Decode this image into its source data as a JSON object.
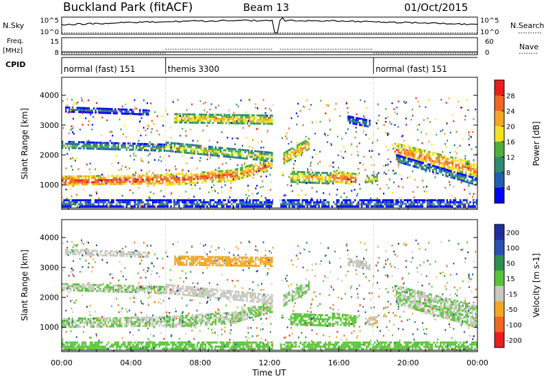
{
  "header": {
    "station": "Buckland Park (fitACF)",
    "beam": "Beam 13",
    "date": "01/Oct/2015"
  },
  "summary_panels": {
    "nsky": {
      "label": "N.Sky",
      "right_label": "N.Search",
      "left_ticks": [
        "10^5",
        "10^0"
      ],
      "right_ticks": [
        "10^5",
        "10^0"
      ]
    },
    "freq": {
      "label": "Freq.",
      "label_units": "[MHz]",
      "right_label": "Nave",
      "left_ticks": [
        "15",
        "8"
      ],
      "right_ticks": [
        "60",
        "0"
      ]
    },
    "cpid": {
      "label": "CPID",
      "segments": [
        {
          "start": 0.0,
          "end": 6.0,
          "text": "normal (fast) 151"
        },
        {
          "start": 6.0,
          "end": 18.0,
          "text": "themis 3300"
        },
        {
          "start": 18.0,
          "end": 24.0,
          "text": "normal (fast) 151"
        }
      ]
    }
  },
  "chart_data": [
    {
      "type": "heatmap",
      "name": "Power",
      "ylabel": "Slant Range [km]",
      "ylim": [
        180,
        4600
      ],
      "yticks": [
        1000,
        2000,
        3000,
        4000
      ],
      "colorbar": {
        "label": "Power [dB]",
        "range": [
          0,
          32
        ],
        "ticks": [
          4,
          8,
          12,
          16,
          20,
          24,
          28
        ],
        "colors": [
          "#0000ff",
          "#1e5fb4",
          "#2e8b6e",
          "#4fae3c",
          "#f2e21d",
          "#f5a623",
          "#f26522",
          "#ee1c1c"
        ]
      },
      "bands": [
        {
          "start": 0.0,
          "end": 6.0,
          "r_start": 1150,
          "r_end": 1200,
          "width": 320,
          "value": 29
        },
        {
          "start": 6.0,
          "end": 10.0,
          "r_start": 1200,
          "r_end": 1350,
          "width": 350,
          "value": 28
        },
        {
          "start": 10.0,
          "end": 12.2,
          "r_start": 1350,
          "r_end": 1700,
          "width": 400,
          "value": 25
        },
        {
          "start": 0.0,
          "end": 6.0,
          "r_start": 2350,
          "r_end": 2250,
          "width": 260,
          "value": 14
        },
        {
          "start": 6.0,
          "end": 12.2,
          "r_start": 2300,
          "r_end": 1950,
          "width": 300,
          "value": 19
        },
        {
          "start": 6.5,
          "end": 12.2,
          "r_start": 3250,
          "r_end": 3200,
          "width": 300,
          "value": 22
        },
        {
          "start": 0.2,
          "end": 5.0,
          "r_start": 3550,
          "r_end": 3450,
          "width": 150,
          "value": 8
        },
        {
          "start": 12.8,
          "end": 14.3,
          "r_start": 1900,
          "r_end": 2400,
          "width": 400,
          "value": 24
        },
        {
          "start": 13.2,
          "end": 15.5,
          "r_start": 1300,
          "r_end": 1250,
          "width": 350,
          "value": 22
        },
        {
          "start": 15.6,
          "end": 17.0,
          "r_start": 1300,
          "r_end": 1200,
          "width": 380,
          "value": 27
        },
        {
          "start": 17.5,
          "end": 18.2,
          "r_start": 1200,
          "r_end": 1250,
          "width": 250,
          "value": 20
        },
        {
          "start": 16.5,
          "end": 17.8,
          "r_start": 3200,
          "r_end": 3050,
          "width": 250,
          "value": 10
        },
        {
          "start": 19.2,
          "end": 24.0,
          "r_start": 2200,
          "r_end": 1500,
          "width": 450,
          "value": 26
        },
        {
          "start": 19.3,
          "end": 24.0,
          "r_start": 1900,
          "r_end": 1100,
          "width": 250,
          "value": 12
        },
        {
          "start": 0.0,
          "end": 24.0,
          "r_start": 400,
          "r_end": 400,
          "width": 240,
          "value": 9
        }
      ]
    },
    {
      "type": "heatmap",
      "name": "Velocity",
      "ylabel": "Slant Range [km]",
      "xlabel": "Time UT",
      "ylim": [
        180,
        4600
      ],
      "yticks": [
        1000,
        2000,
        3000,
        4000
      ],
      "xticks": [
        "00:00",
        "04:00",
        "08:00",
        "12:00",
        "16:00",
        "20:00",
        "00:00"
      ],
      "xlim": [
        0,
        24
      ],
      "colorbar": {
        "label": "Velocity [m s-1]",
        "range": [
          -250,
          250
        ],
        "ticks": [
          200,
          100,
          50,
          15,
          -15,
          -50,
          -100,
          -200
        ],
        "colors": [
          "#1f2e9e",
          "#2b4fb3",
          "#2e8f4e",
          "#58c43a",
          "#c8c8c0",
          "#f5a623",
          "#f26522",
          "#ee1c1c"
        ]
      },
      "bands": [
        {
          "start": 0.0,
          "end": 6.0,
          "r_start": 1150,
          "r_end": 1200,
          "width": 320,
          "value": 0
        },
        {
          "start": 6.0,
          "end": 10.0,
          "r_start": 1200,
          "r_end": 1350,
          "width": 350,
          "value": 0
        },
        {
          "start": 10.0,
          "end": 12.2,
          "r_start": 1350,
          "r_end": 1700,
          "width": 400,
          "value": 0
        },
        {
          "start": 0.0,
          "end": 6.0,
          "r_start": 2350,
          "r_end": 2250,
          "width": 260,
          "value": 0
        },
        {
          "start": 6.0,
          "end": 12.2,
          "r_start": 2300,
          "r_end": 1950,
          "width": 300,
          "value": -40
        },
        {
          "start": 6.5,
          "end": 12.2,
          "r_start": 3250,
          "r_end": 3200,
          "width": 300,
          "value": -80
        },
        {
          "start": 0.2,
          "end": 5.0,
          "r_start": 3550,
          "r_end": 3450,
          "width": 150,
          "value": -30
        },
        {
          "start": 12.8,
          "end": 14.3,
          "r_start": 1900,
          "r_end": 2400,
          "width": 400,
          "value": 0
        },
        {
          "start": 13.2,
          "end": 15.5,
          "r_start": 1300,
          "r_end": 1250,
          "width": 350,
          "value": 30
        },
        {
          "start": 15.6,
          "end": 17.0,
          "r_start": 1300,
          "r_end": 1200,
          "width": 380,
          "value": 40
        },
        {
          "start": 17.5,
          "end": 18.2,
          "r_start": 1200,
          "r_end": 1250,
          "width": 250,
          "value": -50
        },
        {
          "start": 16.5,
          "end": 17.8,
          "r_start": 3200,
          "r_end": 3050,
          "width": 250,
          "value": -30
        },
        {
          "start": 19.2,
          "end": 24.0,
          "r_start": 2200,
          "r_end": 1500,
          "width": 450,
          "value": 0
        },
        {
          "start": 19.3,
          "end": 24.0,
          "r_start": 1900,
          "r_end": 1100,
          "width": 250,
          "value": 0
        },
        {
          "start": 0.0,
          "end": 24.0,
          "r_start": 400,
          "r_end": 400,
          "width": 240,
          "value": 20
        }
      ]
    }
  ]
}
